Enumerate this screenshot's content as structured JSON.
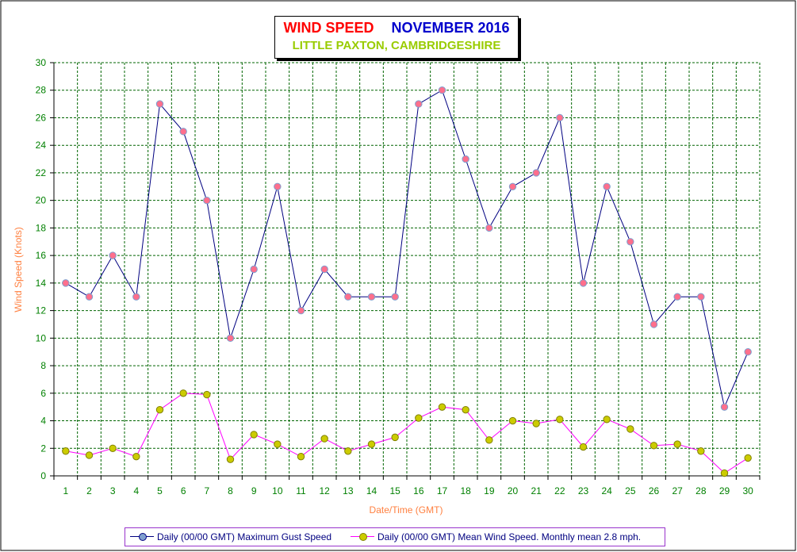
{
  "title": {
    "part1": "WIND SPEED",
    "part2": "NOVEMBER 2016",
    "subtitle": "LITTLE PAXTON, CAMBRIDGESHIRE"
  },
  "colors": {
    "gust_line": "#000080",
    "gust_marker": "#ff6f8c",
    "mean_line": "#ff00ff",
    "mean_marker": "#cccc00",
    "grid": "#006400",
    "tick_text": "#008000",
    "axis_label": "#ff8040"
  },
  "chart_data": {
    "type": "line",
    "title": "WIND SPEED    NOVEMBER 2016",
    "subtitle": "LITTLE PAXTON, CAMBRIDGESHIRE",
    "xlabel": "Date/Time (GMT)",
    "ylabel": "Wind Speed (Knots)",
    "ylim": [
      0,
      30
    ],
    "ytick_step": 2,
    "grid": true,
    "legend_position": "bottom",
    "categories": [
      1,
      2,
      3,
      4,
      5,
      6,
      7,
      8,
      9,
      10,
      11,
      12,
      13,
      14,
      15,
      16,
      17,
      18,
      19,
      20,
      21,
      22,
      23,
      24,
      25,
      26,
      27,
      28,
      29,
      30
    ],
    "series": [
      {
        "name": "Daily (00/00 GMT) Maximum Gust Speed",
        "values": [
          14,
          13,
          16,
          13,
          27,
          25,
          20,
          10,
          15,
          21,
          12,
          15,
          13,
          13,
          13,
          27,
          28,
          23,
          18,
          21,
          22,
          26,
          14,
          21,
          17,
          11,
          13,
          13,
          5,
          9
        ]
      },
      {
        "name": "Daily (00/00 GMT) Mean Wind Speed. Monthly mean 2.8 mph.",
        "values": [
          1.8,
          1.5,
          2.0,
          1.4,
          4.8,
          6.0,
          5.9,
          1.2,
          3.0,
          2.3,
          1.4,
          2.7,
          1.8,
          2.3,
          2.8,
          4.2,
          5.0,
          4.8,
          2.6,
          4.0,
          3.8,
          4.1,
          2.1,
          4.1,
          3.4,
          2.2,
          2.3,
          1.8,
          0.2,
          1.3
        ]
      }
    ]
  }
}
